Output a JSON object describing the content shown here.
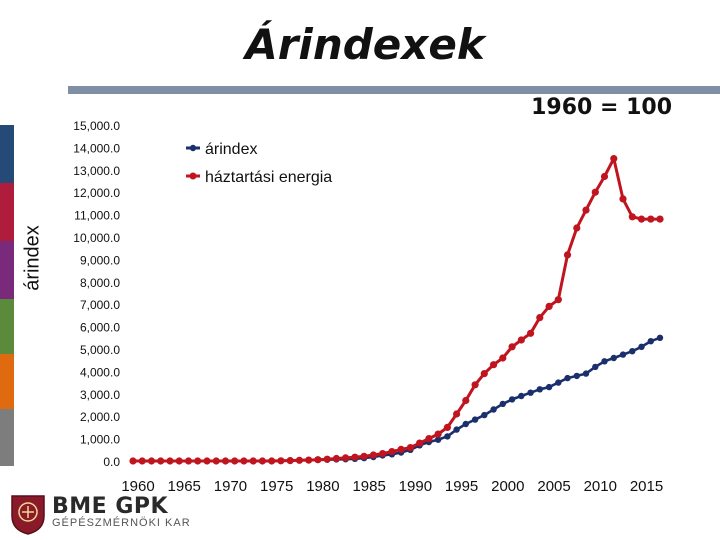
{
  "slide": {
    "title": "Árindexek",
    "note": "1960 = 100"
  },
  "logo": {
    "main": "BME GPK",
    "sub": "GÉPÉSZMÉRNÖKI KAR"
  },
  "colors": {
    "side_bands": [
      "#264a78",
      "#b01c3c",
      "#7a2a7a",
      "#5a8a3a",
      "#e06a10",
      "#7d7d7d"
    ],
    "title_rule": "#7f8fa6"
  },
  "chart_data": {
    "type": "line",
    "title": "",
    "xlabel": "",
    "ylabel": "árindex",
    "ylim": [
      0,
      15000
    ],
    "yticks": [
      "0.0",
      "1,000.0",
      "2,000.0",
      "3,000.0",
      "4,000.0",
      "5,000.0",
      "6,000.0",
      "7,000.0",
      "8,000.0",
      "9,000.0",
      "10,000.0",
      "11,000.0",
      "12,000.0",
      "13,000.0",
      "14,000.0",
      "15,000.0"
    ],
    "xticks": [
      "1960",
      "1965",
      "1970",
      "1975",
      "1980",
      "1985",
      "1990",
      "1995",
      "2000",
      "2005",
      "2010",
      "2015"
    ],
    "xlim": [
      1960,
      2017
    ],
    "legend_position": "top-left",
    "x": [
      1960,
      1961,
      1962,
      1963,
      1964,
      1965,
      1966,
      1967,
      1968,
      1969,
      1970,
      1971,
      1972,
      1973,
      1974,
      1975,
      1976,
      1977,
      1978,
      1979,
      1980,
      1981,
      1982,
      1983,
      1984,
      1985,
      1986,
      1987,
      1988,
      1989,
      1990,
      1991,
      1992,
      1993,
      1994,
      1995,
      1996,
      1997,
      1998,
      1999,
      2000,
      2001,
      2002,
      2003,
      2004,
      2005,
      2006,
      2007,
      2008,
      2009,
      2010,
      2011,
      2012,
      2013,
      2014,
      2015,
      2016,
      2017
    ],
    "series": [
      {
        "name": "árindex",
        "color": "#1a2f6b",
        "values": [
          0,
          0,
          0,
          0,
          0,
          0,
          0,
          0,
          0,
          0,
          0,
          0,
          0,
          0,
          0,
          0,
          10,
          20,
          30,
          40,
          50,
          60,
          70,
          80,
          100,
          130,
          180,
          250,
          300,
          380,
          500,
          700,
          850,
          950,
          1100,
          1400,
          1650,
          1850,
          2050,
          2300,
          2550,
          2750,
          2900,
          3050,
          3200,
          3300,
          3500,
          3700,
          3800,
          3900,
          4200,
          4450,
          4600,
          4750,
          4900,
          5100,
          5350,
          5500
        ]
      },
      {
        "name": "háztartási energia",
        "color": "#c0141e",
        "values": [
          0,
          0,
          0,
          0,
          0,
          0,
          0,
          0,
          0,
          0,
          0,
          0,
          0,
          0,
          0,
          0,
          10,
          20,
          30,
          40,
          60,
          80,
          110,
          140,
          170,
          210,
          270,
          330,
          420,
          520,
          600,
          800,
          1000,
          1200,
          1500,
          2100,
          2700,
          3400,
          3900,
          4300,
          4600,
          5100,
          5400,
          5700,
          6400,
          6900,
          7200,
          9200,
          10400,
          11200,
          12000,
          12700,
          13500,
          11700,
          10900,
          10800,
          10800,
          10800
        ]
      }
    ]
  }
}
